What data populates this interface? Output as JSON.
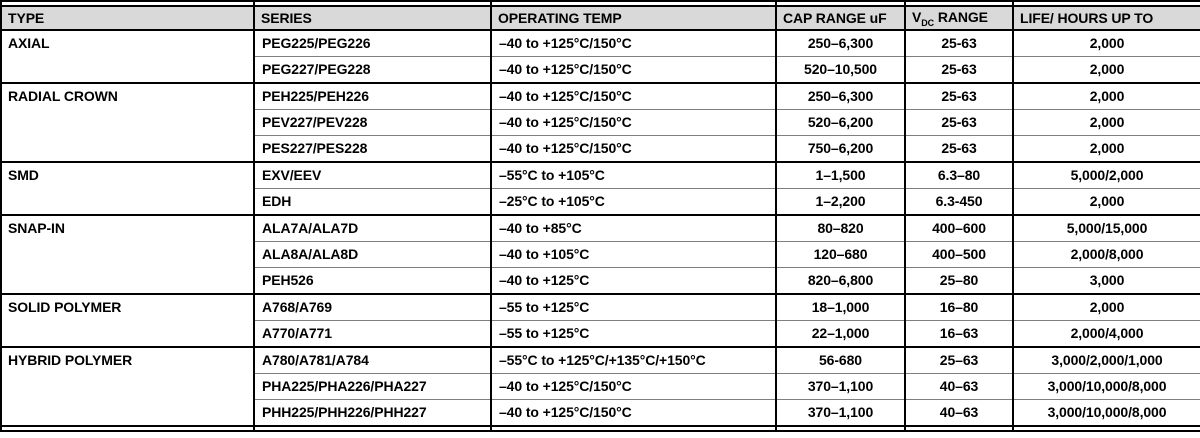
{
  "colors": {
    "header_bg": "#d9d9d9",
    "border": "#000000",
    "inner_border": "#7f7f7f",
    "text": "#000000",
    "row_bg": "#ffffff"
  },
  "table": {
    "columns": {
      "type": "TYPE",
      "series": "SERIES",
      "operating_temp": "OPERATING TEMP",
      "cap_range": "CAP RANGE uF",
      "vdc_prefix": "V",
      "vdc_sub": "DC",
      "vdc_suffix": " RANGE",
      "life": "LIFE/ HOURS UP TO"
    },
    "groups": [
      {
        "type": "AXIAL",
        "rows": [
          {
            "series": "PEG225/PEG226",
            "temp": "–40 to +125°C/150°C",
            "cap": "250–6,300",
            "vdc": "25-63",
            "life": "2,000"
          },
          {
            "series": "PEG227/PEG228",
            "temp": "–40 to +125°C/150°C",
            "cap": "520–10,500",
            "vdc": "25-63",
            "life": "2,000"
          }
        ]
      },
      {
        "type": "RADIAL CROWN",
        "rows": [
          {
            "series": "PEH225/PEH226",
            "temp": "–40 to +125°C/150°C",
            "cap": "250–6,300",
            "vdc": "25-63",
            "life": "2,000"
          },
          {
            "series": "PEV227/PEV228",
            "temp": "–40 to +125°C/150°C",
            "cap": "520–6,200",
            "vdc": "25-63",
            "life": "2,000"
          },
          {
            "series": "PES227/PES228",
            "temp": "–40 to +125°C/150°C",
            "cap": "750–6,200",
            "vdc": "25-63",
            "life": "2,000"
          }
        ]
      },
      {
        "type": "SMD",
        "rows": [
          {
            "series": "EXV/EEV",
            "temp": "–55°C to +105°C",
            "cap": "1–1,500",
            "vdc": "6.3–80",
            "life": "5,000/2,000"
          },
          {
            "series": "EDH",
            "temp": "–25°C to +105°C",
            "cap": "1–2,200",
            "vdc": "6.3-450",
            "life": "2,000"
          }
        ]
      },
      {
        "type": "SNAP-IN",
        "rows": [
          {
            "series": "ALA7A/ALA7D",
            "temp": "–40 to +85°C",
            "cap": "80–820",
            "vdc": "400–600",
            "life": "5,000/15,000"
          },
          {
            "series": "ALA8A/ALA8D",
            "temp": "–40 to +105°C",
            "cap": "120–680",
            "vdc": "400–500",
            "life": "2,000/8,000"
          },
          {
            "series": "PEH526",
            "temp": "–40 to +125°C",
            "cap": "820–6,800",
            "vdc": "25–80",
            "life": "3,000"
          }
        ]
      },
      {
        "type": "SOLID POLYMER",
        "rows": [
          {
            "series": "A768/A769",
            "temp": "–55 to +125°C",
            "cap": "18–1,000",
            "vdc": "16–80",
            "life": "2,000"
          },
          {
            "series": "A770/A771",
            "temp": "–55 to +125°C",
            "cap": "22–1,000",
            "vdc": "16–63",
            "life": "2,000/4,000"
          }
        ]
      },
      {
        "type": "HYBRID POLYMER",
        "rows": [
          {
            "series": "A780/A781/A784",
            "temp": "–55°C to +125°C/+135°C/+150°C",
            "cap": "56-680",
            "vdc": "25–63",
            "life": "3,000/2,000/1,000"
          },
          {
            "series": "PHA225/PHA226/PHA227",
            "temp": "–40 to +125°C/150°C",
            "cap": "370–1,100",
            "vdc": "40–63",
            "life": "3,000/10,000/8,000"
          },
          {
            "series": "PHH225/PHH226/PHH227",
            "temp": "–40 to +125°C/150°C",
            "cap": "370–1,100",
            "vdc": "40–63",
            "life": "3,000/10,000/8,000"
          }
        ]
      }
    ]
  }
}
